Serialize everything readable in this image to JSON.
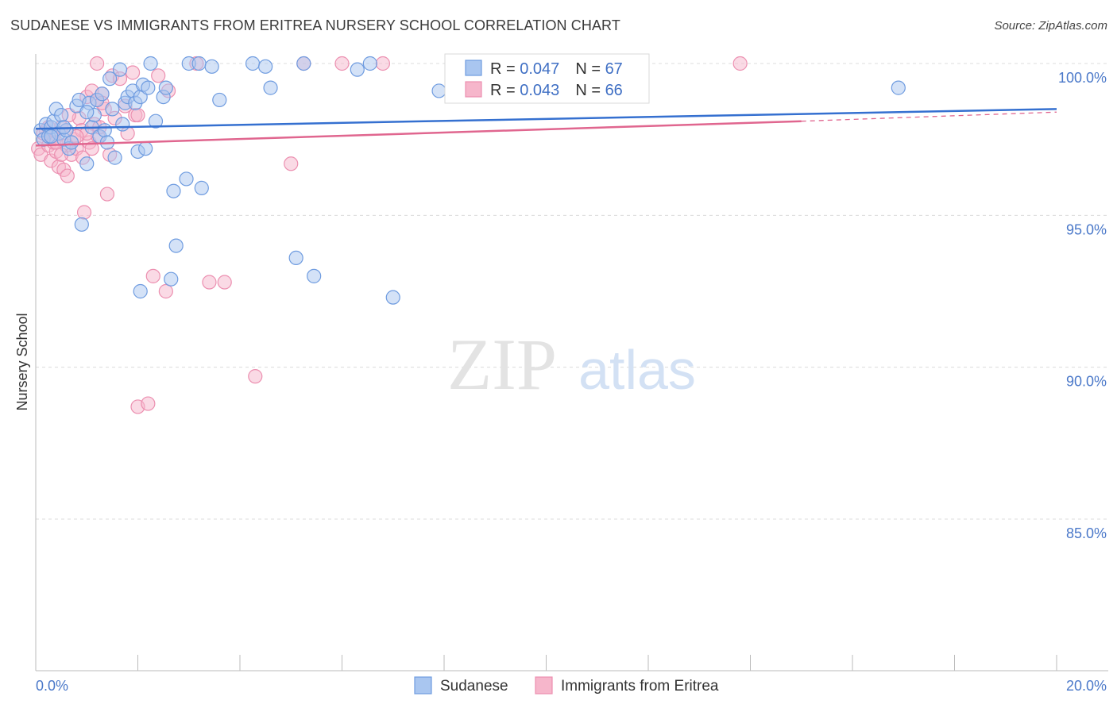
{
  "title": "SUDANESE VS IMMIGRANTS FROM ERITREA NURSERY SCHOOL CORRELATION CHART",
  "source": "Source: ZipAtlas.com",
  "watermark": {
    "zip": "ZIP",
    "atlas": "atlas"
  },
  "colors": {
    "blue_fill": "#a9c6f0",
    "blue_stroke": "#6f9ce0",
    "blue_line": "#3570d0",
    "pink_fill": "#f6b6cb",
    "pink_stroke": "#ec8fb0",
    "pink_line": "#e0668f",
    "grid": "#dcdcdc",
    "tick_text": "#4a78c9"
  },
  "legend": {
    "rows": [
      {
        "r_label": "R = ",
        "r_value": "0.047",
        "n_label": "N = ",
        "n_value": "67"
      },
      {
        "r_label": "R = ",
        "r_value": "0.043",
        "n_label": "N = ",
        "n_value": "66"
      }
    ]
  },
  "chart_data": {
    "type": "scatter",
    "title": "SUDANESE VS IMMIGRANTS FROM ERITREA NURSERY SCHOOL CORRELATION CHART",
    "xlabel": "",
    "ylabel": "Nursery School",
    "xlim": [
      0,
      20
    ],
    "ylim": [
      80,
      100.5
    ],
    "x_tick_labels": [
      "0.0%",
      "20.0%"
    ],
    "y_ticks": [
      85,
      90,
      95,
      100
    ],
    "y_tick_labels": [
      "85.0%",
      "90.0%",
      "95.0%",
      "100.0%"
    ],
    "grid": true,
    "legend_position": "top-center",
    "series": [
      {
        "name": "Sudanese",
        "r": 0.047,
        "n": 67,
        "trend": {
          "x0": 0,
          "y0": 97.85,
          "x1": 20,
          "y1": 98.5
        },
        "points": [
          [
            0.1,
            97.8
          ],
          [
            0.15,
            97.5
          ],
          [
            0.2,
            98.0
          ],
          [
            0.25,
            97.6
          ],
          [
            0.3,
            97.9
          ],
          [
            0.35,
            98.1
          ],
          [
            0.4,
            98.5
          ],
          [
            0.45,
            97.7
          ],
          [
            0.5,
            98.3
          ],
          [
            0.55,
            97.5
          ],
          [
            0.6,
            97.8
          ],
          [
            0.65,
            97.2
          ],
          [
            0.7,
            97.4
          ],
          [
            0.8,
            98.6
          ],
          [
            0.85,
            98.8
          ],
          [
            0.9,
            94.7
          ],
          [
            1.0,
            96.7
          ],
          [
            1.05,
            98.7
          ],
          [
            1.1,
            97.9
          ],
          [
            1.15,
            98.3
          ],
          [
            1.2,
            98.8
          ],
          [
            1.25,
            97.6
          ],
          [
            1.3,
            99.0
          ],
          [
            1.35,
            97.8
          ],
          [
            1.4,
            97.4
          ],
          [
            1.45,
            99.5
          ],
          [
            1.5,
            98.5
          ],
          [
            1.55,
            96.9
          ],
          [
            1.65,
            99.8
          ],
          [
            1.7,
            98.0
          ],
          [
            1.75,
            98.7
          ],
          [
            1.8,
            98.9
          ],
          [
            1.9,
            99.1
          ],
          [
            1.95,
            98.7
          ],
          [
            2.0,
            97.1
          ],
          [
            2.05,
            98.9
          ],
          [
            2.1,
            99.3
          ],
          [
            2.05,
            92.5
          ],
          [
            2.15,
            97.2
          ],
          [
            2.2,
            99.2
          ],
          [
            2.25,
            100.0
          ],
          [
            2.35,
            98.1
          ],
          [
            2.5,
            98.9
          ],
          [
            2.55,
            99.2
          ],
          [
            2.65,
            92.9
          ],
          [
            2.7,
            95.8
          ],
          [
            2.75,
            94.0
          ],
          [
            2.95,
            96.2
          ],
          [
            3.0,
            100.0
          ],
          [
            3.2,
            100.0
          ],
          [
            3.25,
            95.9
          ],
          [
            3.45,
            99.9
          ],
          [
            3.6,
            98.8
          ],
          [
            4.25,
            100.0
          ],
          [
            4.5,
            99.9
          ],
          [
            4.6,
            99.2
          ],
          [
            5.1,
            93.6
          ],
          [
            5.25,
            100.0
          ],
          [
            5.45,
            93.0
          ],
          [
            6.3,
            99.8
          ],
          [
            6.55,
            100.0
          ],
          [
            7.0,
            92.3
          ],
          [
            7.9,
            99.1
          ],
          [
            16.9,
            99.2
          ],
          [
            0.3,
            97.6
          ],
          [
            0.55,
            97.9
          ],
          [
            1.0,
            98.4
          ]
        ]
      },
      {
        "name": "Immigrants from Eritrea",
        "r": 0.043,
        "n": 66,
        "trend": {
          "x0": 0,
          "y0": 97.3,
          "x1": 15.0,
          "y1": 98.1,
          "dash_to_x": 20,
          "dash_to_y": 98.4
        },
        "points": [
          [
            0.05,
            97.2
          ],
          [
            0.1,
            97.0
          ],
          [
            0.15,
            97.5
          ],
          [
            0.2,
            97.8
          ],
          [
            0.25,
            97.3
          ],
          [
            0.3,
            96.8
          ],
          [
            0.35,
            97.6
          ],
          [
            0.4,
            97.1
          ],
          [
            0.45,
            96.6
          ],
          [
            0.5,
            97.9
          ],
          [
            0.55,
            96.5
          ],
          [
            0.6,
            97.3
          ],
          [
            0.62,
            96.3
          ],
          [
            0.7,
            97.0
          ],
          [
            0.75,
            97.5
          ],
          [
            0.8,
            97.2
          ],
          [
            0.85,
            98.2
          ],
          [
            0.9,
            97.8
          ],
          [
            0.92,
            96.9
          ],
          [
            0.95,
            95.1
          ],
          [
            1.0,
            98.9
          ],
          [
            1.05,
            97.4
          ],
          [
            1.1,
            99.1
          ],
          [
            1.15,
            98.0
          ],
          [
            1.2,
            98.8
          ],
          [
            1.22,
            97.6
          ],
          [
            1.25,
            97.9
          ],
          [
            1.3,
            99.0
          ],
          [
            1.35,
            98.5
          ],
          [
            1.4,
            95.7
          ],
          [
            1.45,
            97.0
          ],
          [
            1.5,
            99.6
          ],
          [
            1.55,
            98.2
          ],
          [
            1.65,
            99.5
          ],
          [
            1.75,
            98.6
          ],
          [
            1.8,
            97.7
          ],
          [
            1.9,
            99.7
          ],
          [
            1.95,
            98.3
          ],
          [
            2.0,
            88.7
          ],
          [
            2.2,
            88.8
          ],
          [
            2.3,
            93.0
          ],
          [
            2.4,
            99.6
          ],
          [
            2.55,
            92.5
          ],
          [
            2.6,
            99.1
          ],
          [
            3.15,
            100.0
          ],
          [
            3.4,
            92.8
          ],
          [
            3.7,
            92.8
          ],
          [
            4.3,
            89.7
          ],
          [
            5.0,
            96.7
          ],
          [
            5.25,
            100.0
          ],
          [
            6.0,
            100.0
          ],
          [
            6.8,
            100.0
          ],
          [
            13.8,
            100.0
          ],
          [
            1.2,
            100.0
          ],
          [
            0.35,
            97.4
          ],
          [
            0.65,
            98.3
          ],
          [
            0.15,
            97.7
          ],
          [
            1.0,
            97.7
          ],
          [
            0.5,
            97.0
          ],
          [
            1.3,
            98.7
          ],
          [
            0.8,
            97.6
          ],
          [
            0.25,
            97.9
          ],
          [
            2.0,
            98.3
          ],
          [
            1.1,
            97.2
          ],
          [
            0.6,
            97.8
          ],
          [
            0.4,
            97.4
          ]
        ]
      }
    ]
  },
  "bottom_legend": {
    "items": [
      "Sudanese",
      "Immigrants from Eritrea"
    ]
  }
}
